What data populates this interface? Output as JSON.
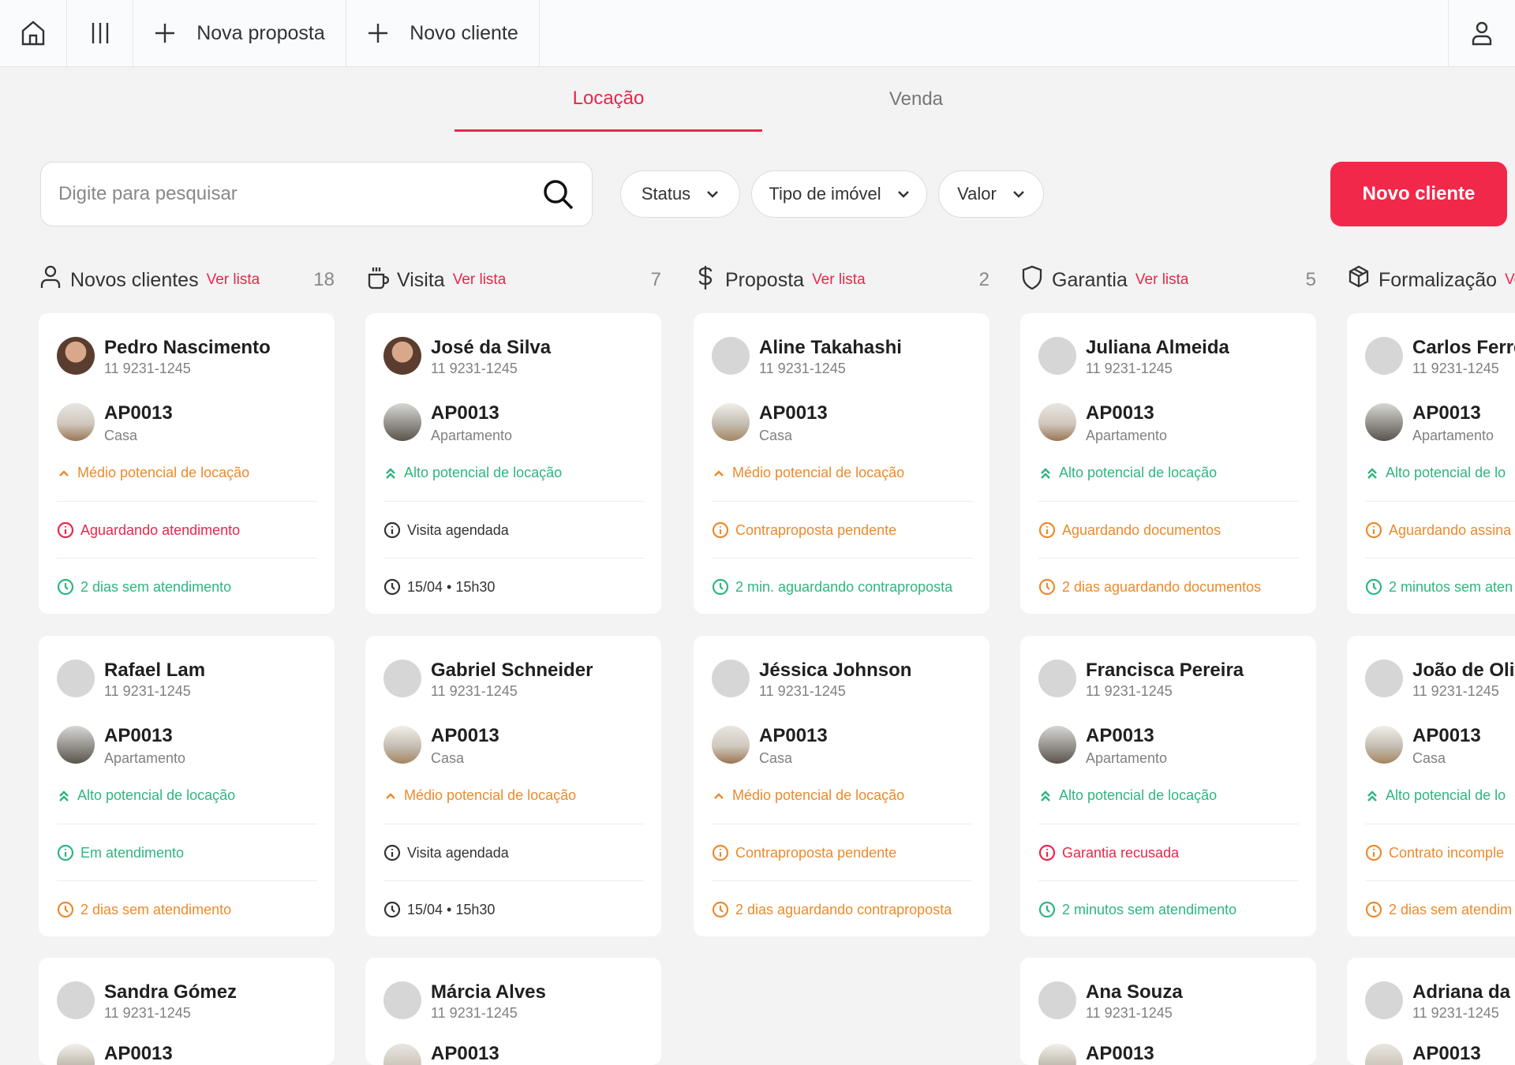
{
  "topbar": {
    "items": [
      {
        "icon": "home-icon"
      },
      {
        "icon": "columns-icon"
      },
      {
        "icon": "plus-icon",
        "label": "Nova proposta"
      },
      {
        "icon": "plus-icon",
        "label": "Novo cliente"
      }
    ],
    "user_icon": "user-icon"
  },
  "tabs": [
    {
      "label": "Locação",
      "active": true
    },
    {
      "label": "Venda",
      "active": false
    }
  ],
  "search": {
    "placeholder": "Digite para pesquisar"
  },
  "filters": [
    {
      "label": "Status"
    },
    {
      "label": "Tipo de imóvel"
    },
    {
      "label": "Valor"
    }
  ],
  "new_client_button": "Novo cliente",
  "colors": {
    "accent": "#e8274b",
    "orange": "#ec8a2c",
    "green": "#2fb57f",
    "dark": "#333333"
  },
  "ver_lista": "Ver lista",
  "columns": [
    {
      "title": "Novos clientes",
      "icon": "user-icon",
      "count": "18",
      "cards": [
        {
          "name": "Pedro Nascimento",
          "phone": "11 9231-1245",
          "photo": true,
          "code": "AP0013",
          "type": "Casa",
          "potential": "Médio potencial de locação",
          "level": "medio",
          "status": "Aguardando atendimento",
          "status_color": "red",
          "time": "2 dias sem atendimento",
          "time_color": "green"
        },
        {
          "name": "Rafael Lam",
          "phone": "11 9231-1245",
          "code": "AP0013",
          "type": "Apartamento",
          "potential": "Alto potencial de locação",
          "level": "alto",
          "status": "Em atendimento",
          "status_color": "green",
          "time": "2 dias sem atendimento",
          "time_color": "orange"
        },
        {
          "name": "Sandra Gómez",
          "phone": "11 9231-1245",
          "code": "AP0013"
        }
      ]
    },
    {
      "title": "Visita",
      "icon": "coffee-icon",
      "count": "7",
      "cards": [
        {
          "name": "José da Silva",
          "phone": "11 9231-1245",
          "photo": true,
          "code": "AP0013",
          "type": "Apartamento",
          "potential": "Alto potencial de locação",
          "level": "alto",
          "status": "Visita agendada",
          "status_color": "dark",
          "time": "15/04 • 15h30",
          "time_color": "dark"
        },
        {
          "name": "Gabriel Schneider",
          "phone": "11 9231-1245",
          "code": "AP0013",
          "type": "Casa",
          "potential": "Médio potencial de locação",
          "level": "medio",
          "status": "Visita agendada",
          "status_color": "dark",
          "time": "15/04 • 15h30",
          "time_color": "dark"
        },
        {
          "name": "Márcia Alves",
          "phone": "11 9231-1245",
          "code": "AP0013"
        }
      ]
    },
    {
      "title": "Proposta",
      "icon": "dollar-icon",
      "count": "2",
      "cards": [
        {
          "name": "Aline Takahashi",
          "phone": "11 9231-1245",
          "code": "AP0013",
          "type": "Casa",
          "potential": "Médio potencial de locação",
          "level": "medio",
          "status": "Contraproposta pendente",
          "status_color": "orange",
          "time": "2 min. aguardando contraproposta",
          "time_color": "green"
        },
        {
          "name": "Jéssica Johnson",
          "phone": "11 9231-1245",
          "code": "AP0013",
          "type": "Casa",
          "potential": "Médio potencial de locação",
          "level": "medio",
          "status": "Contraproposta pendente",
          "status_color": "orange",
          "time": "2 dias aguardando contraproposta",
          "time_color": "orange"
        }
      ]
    },
    {
      "title": "Garantia",
      "icon": "shield-icon",
      "count": "5",
      "cards": [
        {
          "name": "Juliana Almeida",
          "phone": "11 9231-1245",
          "code": "AP0013",
          "type": "Apartamento",
          "potential": "Alto potencial de locação",
          "level": "alto",
          "status": "Aguardando documentos",
          "status_color": "orange",
          "time": "2 dias aguardando documentos",
          "time_color": "orange"
        },
        {
          "name": "Francisca Pereira",
          "phone": "11 9231-1245",
          "code": "AP0013",
          "type": "Apartamento",
          "potential": "Alto potencial de locação",
          "level": "alto",
          "status": "Garantia recusada",
          "status_color": "red",
          "time": "2 minutos sem atendimento",
          "time_color": "green"
        },
        {
          "name": "Ana Souza",
          "phone": "11 9231-1245",
          "code": "AP0013"
        }
      ]
    },
    {
      "title": "Formalização",
      "icon": "package-icon",
      "count": "",
      "cards": [
        {
          "name": "Carlos Ferre",
          "phone": "11 9231-1245",
          "code": "AP0013",
          "type": "Apartamento",
          "potential": "Alto potencial de lo",
          "level": "alto",
          "status": "Aguardando assina",
          "status_color": "orange",
          "time": "2 minutos sem aten",
          "time_color": "green"
        },
        {
          "name": "João de Oliv",
          "phone": "11 9231-1245",
          "code": "AP0013",
          "type": "Casa",
          "potential": "Alto potencial de lo",
          "level": "alto",
          "status": "Contrato incomple",
          "status_color": "orange",
          "time": "2 dias sem atendim",
          "time_color": "orange"
        },
        {
          "name": "Adriana da C",
          "phone": "11 9231-1245",
          "code": "AP0013"
        }
      ]
    }
  ]
}
